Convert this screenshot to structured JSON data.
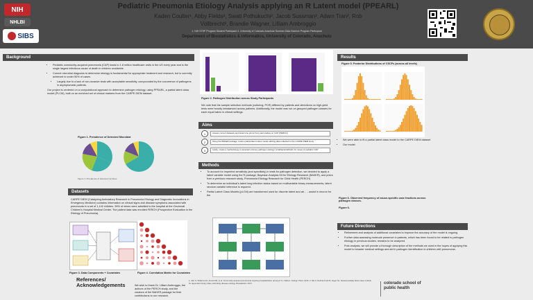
{
  "header": {
    "title": "Pediatric Pneumonia Etiology Analysis applying an R Latent model (PPEARL)",
    "authors_line1": "Kaden Coulter¹, Abby Fields², Swati Pothukuchi², Jacob Sussman², Adam Tran², Rob",
    "authors_line2": "Vollbrecht², Brandie Wagner, Lilliam Ambroggio",
    "affil_small": "1. NIH STEP Program Student Participant 2. University of Colorado Anschutz Summer Data Science Program Participant",
    "affiliation": "Department of Biostatistics & Informatics, University of Colorado, Anschutz",
    "logo_nih": "NIH",
    "logo_nhlbi": "NHLBI",
    "logo_sibs": "SIBS"
  },
  "background": {
    "heading": "Background",
    "b1": "Pediatric community-acquired pneumonia (CAP) leads to 1.8 million healthcare visits in the US every year and is the single largest infectious cause of death in children worldwide.",
    "b2": "Correct microbial diagnosis to determine etiology is fundamental for appropriate treatment and research, but is currently achieved in under 50% of cases.",
    "b3": "Largely due to a lack of non-invasive tests with acceptable sensitivity, compounded by the cocurrence of pathogens in asymptomatic patients.",
    "p1": "Our project is centered on a computational approach to determine pathogen etiology, using PPEARL, a partial latent class model (PLCM), built on an enriched set of clinical markers from the CARPE DIEM dataset.",
    "fig1_caption": "Figure 1. Prevalence of Detected Microbial",
    "fig1_footnote": "Figure 1: Prevalence of detected microbes"
  },
  "datasets": {
    "heading": "Datasets",
    "text": "CARPE DIEM (Catalyzing Ambulatory Research in Pneumonia Etiology and Diagnostic Innovations in Emergency Medicine) contains information on clinical signs and disease symptoms associated with pneumonia in a set of 1,142 children. 59% of whom were admitted to the hospital at the Cincinnati Children's Hospital Medical Center. The patient data was enrolled FERCH (Prospective Evaluation in the Etiology of Pneumonia).",
    "fig3_caption": "Figure 3. Data Components + Covariates",
    "fig4_caption": "Figure 4. Correlation Matrix for Covariates"
  },
  "middle": {
    "fig2_caption": "Figure 2. Pathogen Distribution across Study Participants",
    "fig2_text": "We note that the sample selection methods (culturing, PCR) differed by patients and detections on high-yield tests were heavily imbalanced across patients. Additionally, the model was run on grouped pathogen classes for each equal taken in clinical settings.",
    "aims_heading": "Aims",
    "aim1": "Assess current datasets and determine priors from past studies on CAP (PERCH)",
    "aim2": "Using the BAKER package, build a partial latent class model utilizing data collected in the CARPE DIEM study",
    "aim3": "Lastly, create a methodology to ascertain primary pathogen etiology (viral/bacterial/both) for cases of pediatric CAP",
    "methods_heading": "Methods",
    "m1": "To account for imperfect sensitivity (and specificity) in tests for pathogen detection, we decided to apply a latent variable model using the R package, Bayesian Analysis Kit for Etiology Research (BAKER), and priors from a previous research study, Pneumonia Etiology Research for Child Health (PERCH)",
    "m2": "To determine an individual's latent lung infection status based on multivariable binary measurements, latent random variable inference is required.",
    "m3": "Partial Latent Class Models (pLCM) are transformed used for discrete latent and ab... ...assist in neuron for the"
  },
  "results": {
    "heading": "Results",
    "fig5_caption": "Figure 5. Posterior Distributions of CSCFs (across all levels)",
    "note1": "We were able to fit a partial latent class model to the CARPE DIEM dataset",
    "note2": "Our model",
    "fig6_caption": "Figure 6. Observed frequency of cause-specific case fractions across pathogen classes.",
    "fig6_label": "Figure 6."
  },
  "future": {
    "heading": "Future Directions",
    "f1": "Refinement and analysis of additional covariates to improve the accuracy of the model is ongoing.",
    "f2": "Further data assessing molecule presence in patients, which has been found to be related to pathogen etiology in previous studies, remains to be analyzed.",
    "f3": "Post analysis, we will provide a thorough description of the methods we used in the hopes of applying this model to broader medical settings and aid in pathogen identification in children with pneumonia."
  },
  "references": {
    "heading": "References/ Acknowledgements",
    "text": "We wish to thank Dr. Lilliam Ambroggio, the authors of the PERCH study, and the creators of the BAKER package for their contributions to our research.",
    "refs_line": "1. Jain S, Williams DJ, Arnold SR, et al. Community-acquired pneumonia requiring hospitalization among U.S. children. N Engl J Med. 2015. 2. Wu Z, Deloria-Knoll M, Zeger SL. Nested partially latent class models for dependent binary data; estimating disease etiology. Biostatistics. 2017.",
    "logo_text": "colorado school of public health"
  },
  "colors": {
    "header_bg": "#4a4a4a",
    "bar_purple": "#5b2a86",
    "bar_green": "#6bb24a",
    "hist_orange": "#f0a030",
    "pie_teal": "#3aafa9",
    "pie_green": "#9bc53d",
    "pie_purple": "#6a4c93",
    "pie_yellow": "#f6d743"
  }
}
